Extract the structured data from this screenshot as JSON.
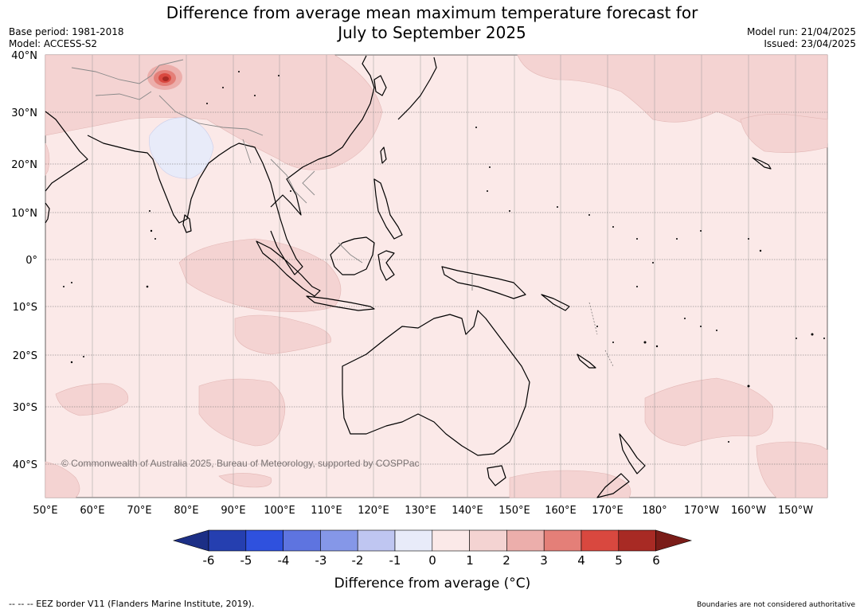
{
  "title_line1": "Difference from average mean maximum temperature forecast for",
  "title_line2": "July to September 2025",
  "base_period": "Base period: 1981-2018",
  "model": "Model: ACCESS-S2",
  "model_run": "Model run: 21/04/2025",
  "issued": "Issued: 23/04/2025",
  "copyright": "© Commonwealth of Australia 2025, Bureau of Meteorology, supported by COSPPac",
  "lat_labels": [
    "40°N",
    "30°N",
    "20°N",
    "10°N",
    "0°",
    "10°S",
    "20°S",
    "30°S",
    "40°S"
  ],
  "lon_labels": [
    "50°E",
    "60°E",
    "70°E",
    "80°E",
    "90°E",
    "100°E",
    "110°E",
    "120°E",
    "130°E",
    "140°E",
    "150°E",
    "160°E",
    "170°E",
    "180°",
    "170°W",
    "160°W",
    "150°W"
  ],
  "colorbar": {
    "ticks": [
      "-6",
      "-5",
      "-4",
      "-3",
      "-2",
      "-1",
      "0",
      "1",
      "2",
      "3",
      "4",
      "5",
      "6"
    ],
    "colors": [
      "#1c2f86",
      "#253fb0",
      "#2f51de",
      "#5e74e0",
      "#8597e8",
      "#bfc6f1",
      "#e8ebf9",
      "#fbe9e8",
      "#f4d3d2",
      "#ecaeab",
      "#e47f78",
      "#d9483f",
      "#a82a24",
      "#7a1c18"
    ],
    "label": "Difference from average (°C)"
  },
  "footer_left": "--  --  -- EEZ border V11 (Flanders Marine Institute, 2019).",
  "footer_right": "Boundaries are not considered authoritative"
}
